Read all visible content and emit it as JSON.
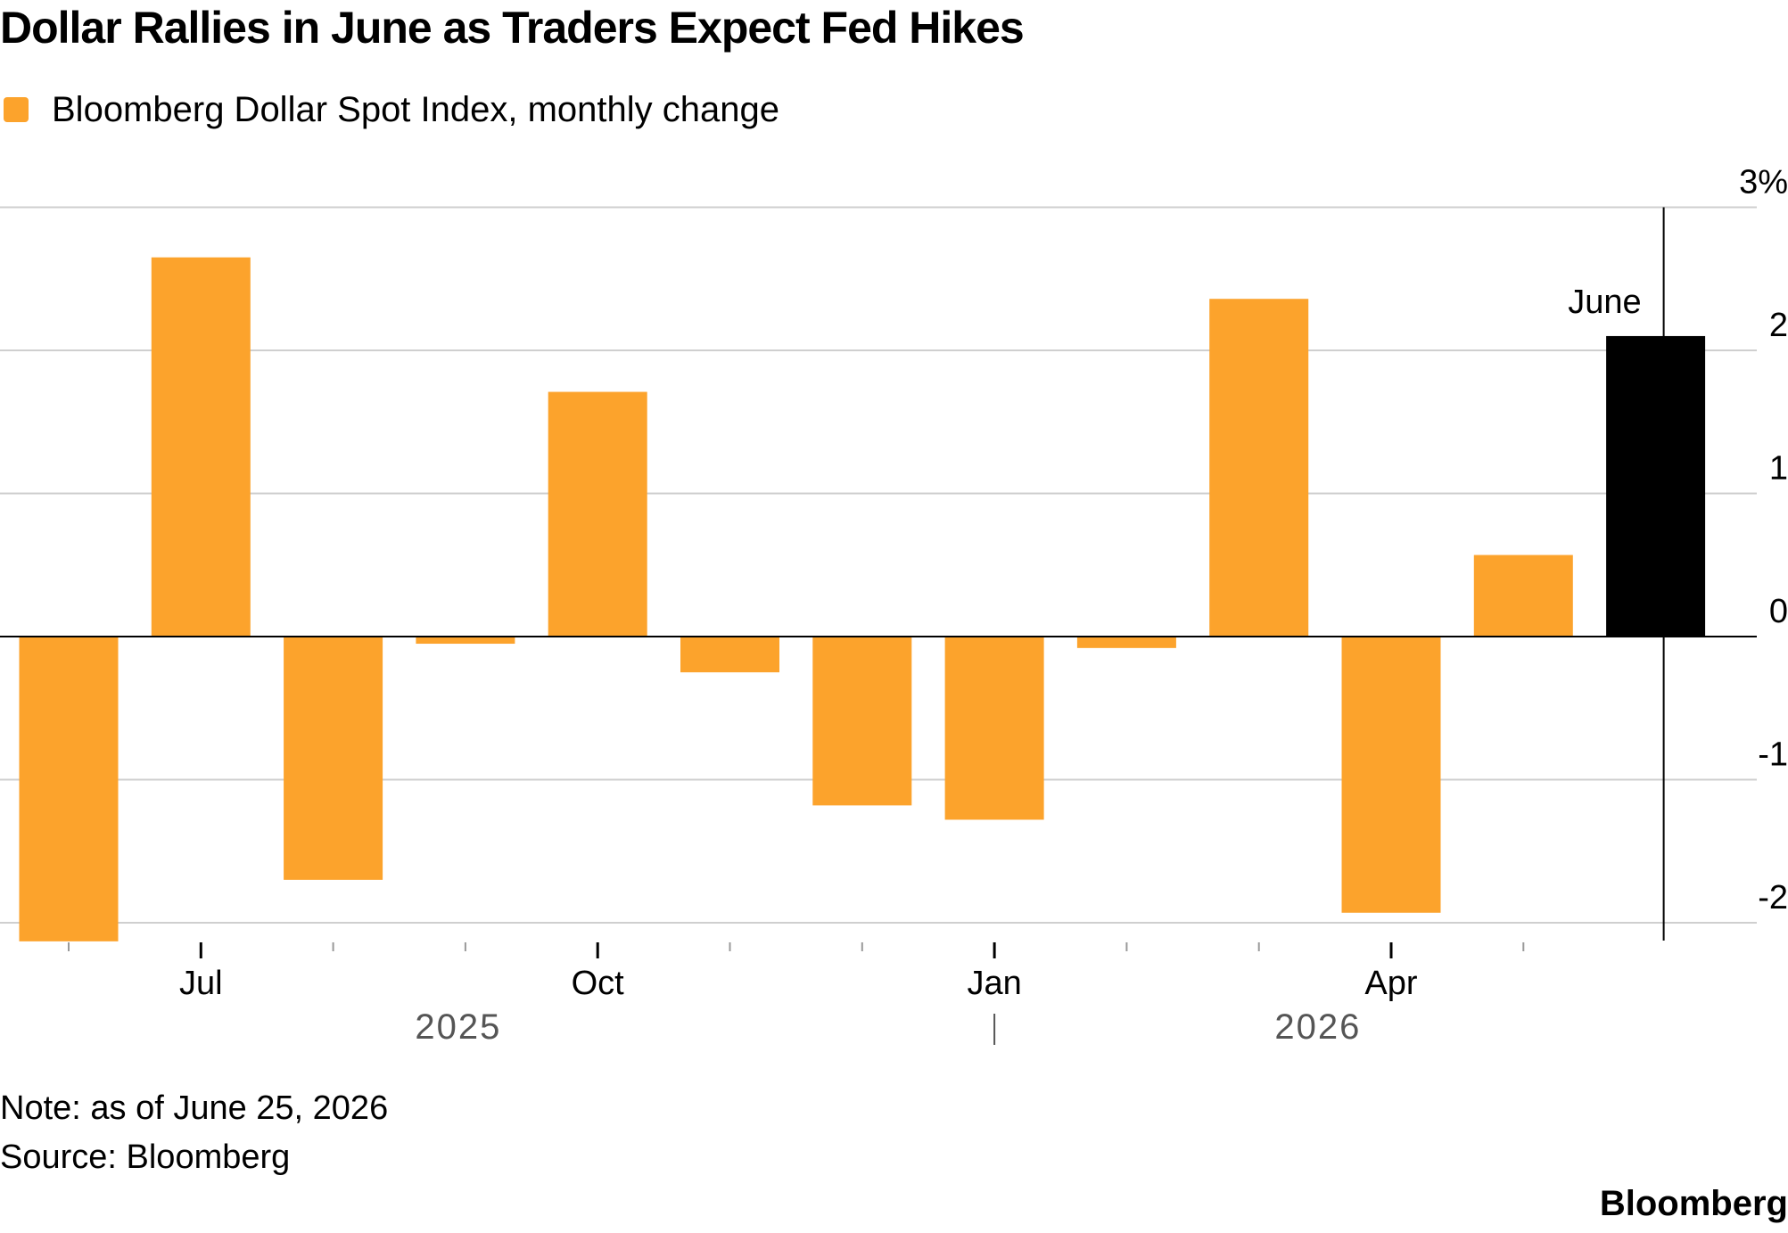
{
  "title": "Dollar Rallies in June as Traders Expect Fed Hikes",
  "legend": {
    "label": "Bloomberg Dollar Spot Index, monthly change",
    "color": "#fca32c"
  },
  "chart_data": {
    "type": "bar",
    "categories": [
      "Jun",
      "Jul",
      "Aug",
      "Sep",
      "Oct",
      "Nov",
      "Dec",
      "Jan",
      "Feb",
      "Mar",
      "Apr",
      "May",
      "Jun"
    ],
    "values": [
      -2.13,
      2.65,
      -1.7,
      -0.05,
      1.71,
      -0.25,
      -1.18,
      -1.28,
      -0.08,
      2.36,
      -1.93,
      0.57,
      2.1
    ],
    "highlight_index": 12,
    "highlight_color": "#000000",
    "bar_color": "#fca32c",
    "highlight_label": "June",
    "ylim": [
      -2.1,
      3
    ],
    "yticks": [
      {
        "value": 3,
        "label": "3%"
      },
      {
        "value": 2,
        "label": "2"
      },
      {
        "value": 1,
        "label": "1"
      },
      {
        "value": 0,
        "label": "0"
      },
      {
        "value": -1,
        "label": "-1"
      },
      {
        "value": -2,
        "label": "-2"
      }
    ],
    "xtick_labels": [
      {
        "index": 1,
        "label": "Jul"
      },
      {
        "index": 4,
        "label": "Oct"
      },
      {
        "index": 7,
        "label": "Jan"
      },
      {
        "index": 10,
        "label": "Apr"
      }
    ],
    "year_labels": [
      {
        "label": "2025",
        "start": 0,
        "end": 6
      },
      {
        "label": "2026",
        "start": 7,
        "end": 12
      }
    ],
    "grid": true
  },
  "footer": {
    "note": "Note: as of June 25, 2026",
    "source": "Source: Bloomberg",
    "brand": "Bloomberg"
  }
}
